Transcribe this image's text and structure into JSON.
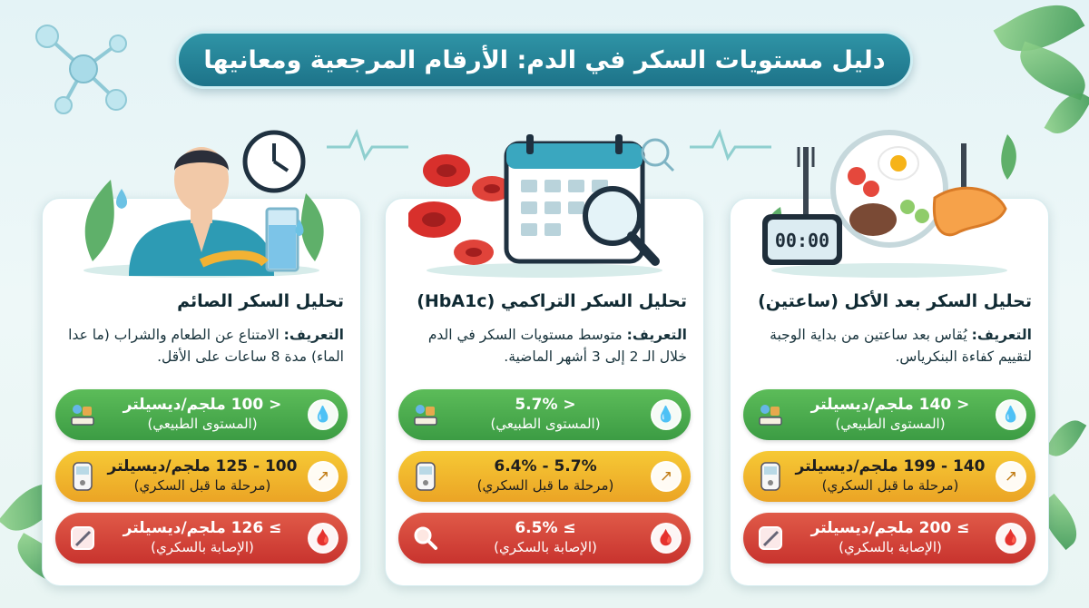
{
  "title": "دليل مستويات السكر في الدم: الأرقام المرجعية ومعانيها",
  "colors": {
    "title_bg": "#1d7389",
    "normal": "#3c9c44",
    "prediabetes": "#eba425",
    "diabetes": "#c8332e"
  },
  "cards": [
    {
      "title": "تحليل السكر الصائم",
      "def_label": "التعريف:",
      "def_text": "الامتناع عن الطعام والشراب (ما عدا الماء) مدة 8 ساعات على الأقل.",
      "illustration": "person-fasting-clock-water-icon",
      "levels": [
        {
          "value": "< 100 ملجم/ديسيلتر",
          "status": "(المستوى الطبيعي)",
          "icon": "drop-icon",
          "tool": "scale-icon"
        },
        {
          "value": "100 - 125 ملجم/ديسيلتر",
          "status": "(مرحلة ما قبل السكري)",
          "icon": "drop-arrow-icon",
          "tool": "glucometer-icon"
        },
        {
          "value": "≥ 126 ملجم/ديسيلتر",
          "status": "(الإصابة بالسكري)",
          "icon": "blood-drop-icon",
          "tool": "insulin-pen-icon"
        }
      ]
    },
    {
      "title": "تحليل السكر التراكمي (HbA1c)",
      "def_label": "التعريف:",
      "def_text": "متوسط مستويات السكر في الدم خلال الـ 2 إلى 3 أشهر الماضية.",
      "illustration": "blood-cells-calendar-magnifier-icon",
      "levels": [
        {
          "value": "< 5.7%",
          "status": "(المستوى الطبيعي)",
          "icon": "drop-icon",
          "tool": "scale-icon"
        },
        {
          "value": "5.7% - 6.4%",
          "status": "(مرحلة ما قبل السكري)",
          "icon": "drop-arrow-icon",
          "tool": "glucometer-icon"
        },
        {
          "value": "≥ 6.5%",
          "status": "(الإصابة بالسكري)",
          "icon": "blood-drop-icon",
          "tool": "magnifier-icon"
        }
      ]
    },
    {
      "title": "تحليل السكر بعد الأكل (ساعتين)",
      "def_label": "التعريف:",
      "def_text": "يُقاس بعد ساعتين من بداية الوجبة لتقييم كفاءة البنكرياس.",
      "illustration": "meal-timer-pancreas-icon",
      "timer": "00:00",
      "levels": [
        {
          "value": "< 140 ملجم/ديسيلتر",
          "status": "(المستوى الطبيعي)",
          "icon": "drop-icon",
          "tool": "scale-icon"
        },
        {
          "value": "140 - 199 ملجم/ديسيلتر",
          "status": "(مرحلة ما قبل السكري)",
          "icon": "drop-arrow-icon",
          "tool": "glucometer-icon"
        },
        {
          "value": "≥ 200 ملجم/ديسيلتر",
          "status": "(الإصابة بالسكري)",
          "icon": "blood-drop-icon",
          "tool": "insulin-pen-icon"
        }
      ]
    }
  ]
}
